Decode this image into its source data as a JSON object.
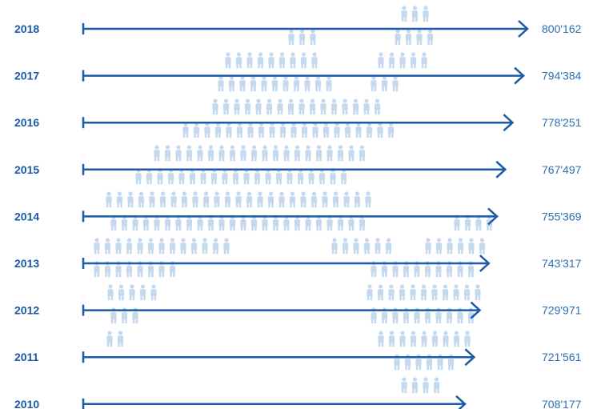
{
  "colors": {
    "primary": "#1b5aa6",
    "value_text": "#2e6db4",
    "people_icons": "#c5d9ee"
  },
  "chart_data": {
    "type": "bar",
    "orientation": "horizontal",
    "categories": [
      "2018",
      "2017",
      "2016",
      "2015",
      "2014",
      "2013",
      "2012",
      "2011",
      "2010"
    ],
    "values": [
      800162,
      794384,
      778251,
      767497,
      755369,
      743317,
      729971,
      721561,
      708177
    ],
    "value_labels": [
      "800'162",
      "794'384",
      "778'251",
      "767'497",
      "755'369",
      "743'317",
      "729'971",
      "721'561",
      "708'177"
    ],
    "xlim": [
      0,
      800162
    ],
    "title": "",
    "xlabel": "",
    "ylabel": "",
    "grid": false,
    "background_icon": "person-icon"
  }
}
